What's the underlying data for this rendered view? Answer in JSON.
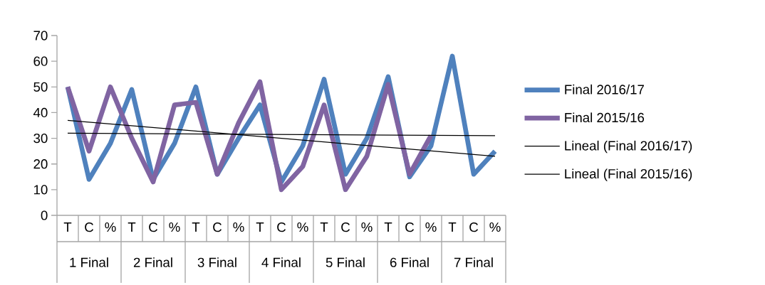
{
  "chart_data": {
    "type": "line",
    "categories": [
      "T",
      "C",
      "%",
      "T",
      "C",
      "%",
      "T",
      "C",
      "%",
      "T",
      "C",
      "%",
      "T",
      "C",
      "%",
      "T",
      "C",
      "%",
      "T",
      "C",
      "%"
    ],
    "series": [
      {
        "name": "Final 2016/17",
        "color": "#4f81bd",
        "values": [
          50,
          14,
          28,
          49,
          14,
          28,
          50,
          16,
          30,
          43,
          13,
          27,
          53,
          16,
          30,
          54,
          15,
          27,
          62,
          16,
          25
        ]
      },
      {
        "name": "Final 2015/16",
        "color": "#8064a2",
        "values": [
          50,
          25,
          50,
          30,
          13,
          43,
          44,
          16,
          36,
          52,
          10,
          19,
          43,
          10,
          23,
          51,
          16,
          31,
          null,
          null,
          null
        ]
      },
      {
        "name": "Lineal (Final 2016/17)",
        "type": "line",
        "color": "#000000",
        "values": [
          32,
          null,
          null,
          null,
          null,
          null,
          null,
          null,
          null,
          null,
          null,
          null,
          null,
          null,
          null,
          null,
          null,
          null,
          null,
          null,
          31
        ]
      },
      {
        "name": "Lineal (Final 2015/16)",
        "type": "line",
        "color": "#000000",
        "values": [
          37,
          null,
          null,
          null,
          null,
          null,
          null,
          null,
          null,
          null,
          null,
          null,
          null,
          null,
          null,
          null,
          null,
          null,
          null,
          null,
          23
        ]
      }
    ],
    "annotations": [
      "1 Final",
      "2 Final",
      "3 Final",
      "4 Final",
      "5 Final",
      "6 Final",
      "7 Final"
    ],
    "ylim": [
      0,
      70
    ],
    "yticks": [
      0,
      10,
      20,
      30,
      40,
      50,
      60,
      70
    ],
    "grid": false,
    "legend": "right",
    "marker": "none",
    "line_style": "solid"
  }
}
